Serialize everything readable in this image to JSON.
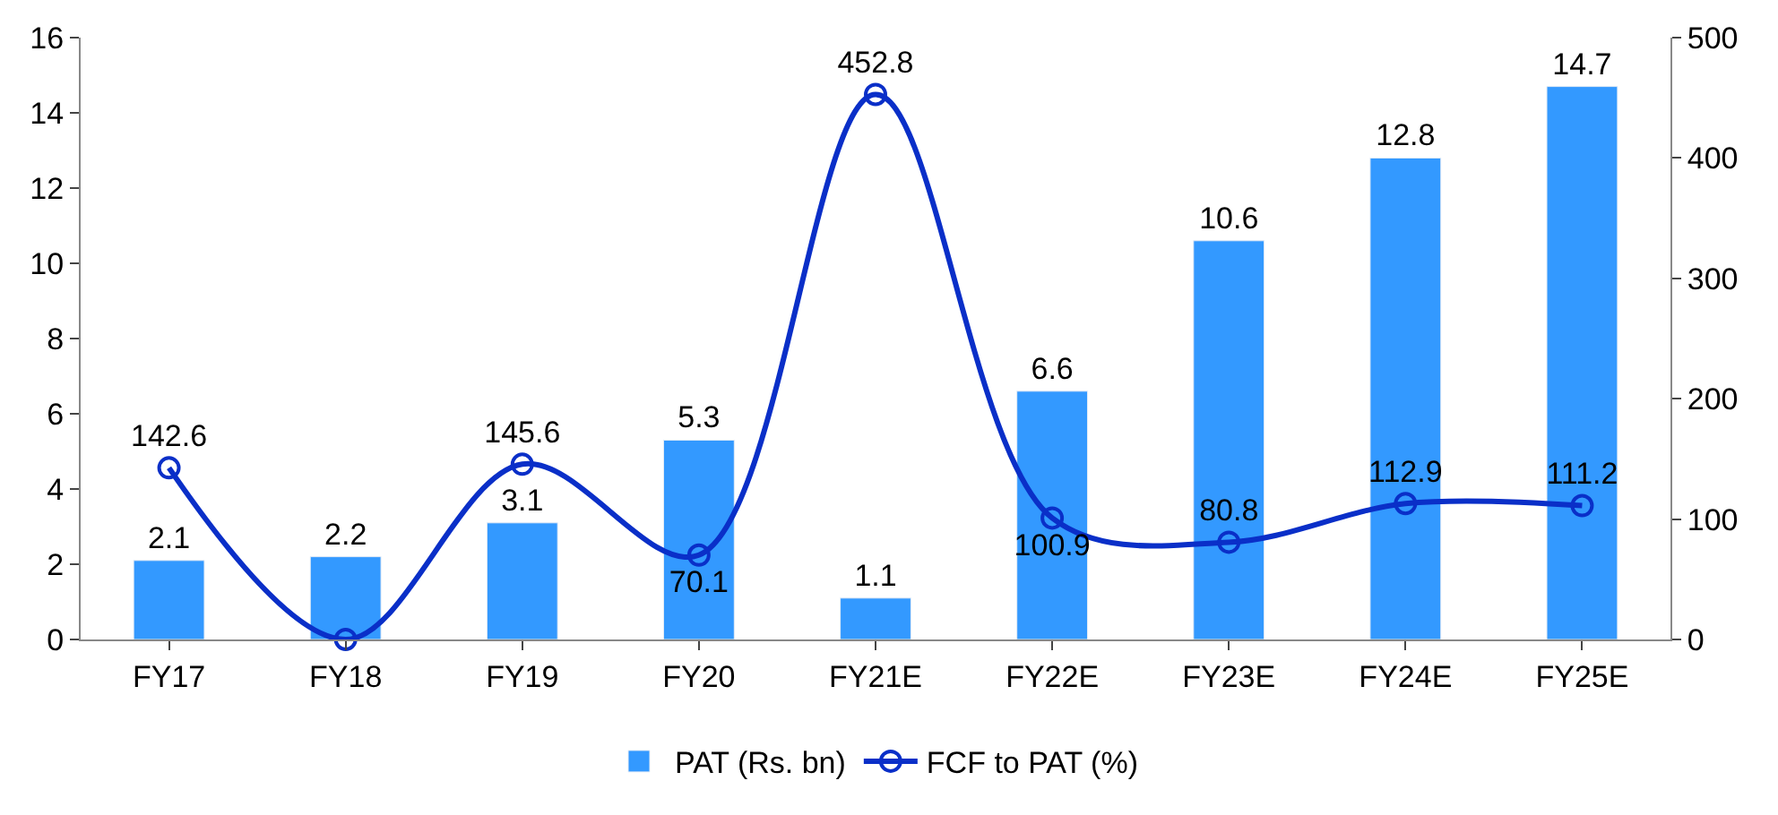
{
  "chart_data": {
    "type": "bar",
    "categories": [
      "FY17",
      "FY18",
      "FY19",
      "FY20",
      "FY21E",
      "FY22E",
      "FY23E",
      "FY24E",
      "FY25E"
    ],
    "series": [
      {
        "name": "PAT (Rs. bn)",
        "color": "#3399ff",
        "values": [
          2.1,
          2.2,
          3.1,
          5.3,
          1.1,
          6.6,
          10.6,
          12.8,
          14.7
        ],
        "value_labels": [
          "2.1",
          "2.2",
          "3.1",
          "5.3",
          "1.1",
          "6.6",
          "10.6",
          "12.8",
          "14.7"
        ]
      },
      {
        "name": "FCF to PAT (%)",
        "type": "line",
        "axis": "y2",
        "color": "#0a2fc8",
        "marker": "circle",
        "values": [
          142.6,
          0,
          145.6,
          70.1,
          452.8,
          100.9,
          80.8,
          112.9,
          111.2
        ],
        "value_labels": [
          "142.6",
          null,
          "145.6",
          "70.1",
          "452.8",
          "100.9",
          "80.8",
          "112.9",
          "111.2"
        ]
      }
    ],
    "ylim": [
      0,
      16
    ],
    "yticks": [
      0,
      2,
      4,
      6,
      8,
      10,
      12,
      14,
      16
    ],
    "y2lim": [
      0,
      500
    ],
    "y2ticks": [
      0,
      100,
      200,
      300,
      400,
      500
    ],
    "legend": "bottom"
  }
}
